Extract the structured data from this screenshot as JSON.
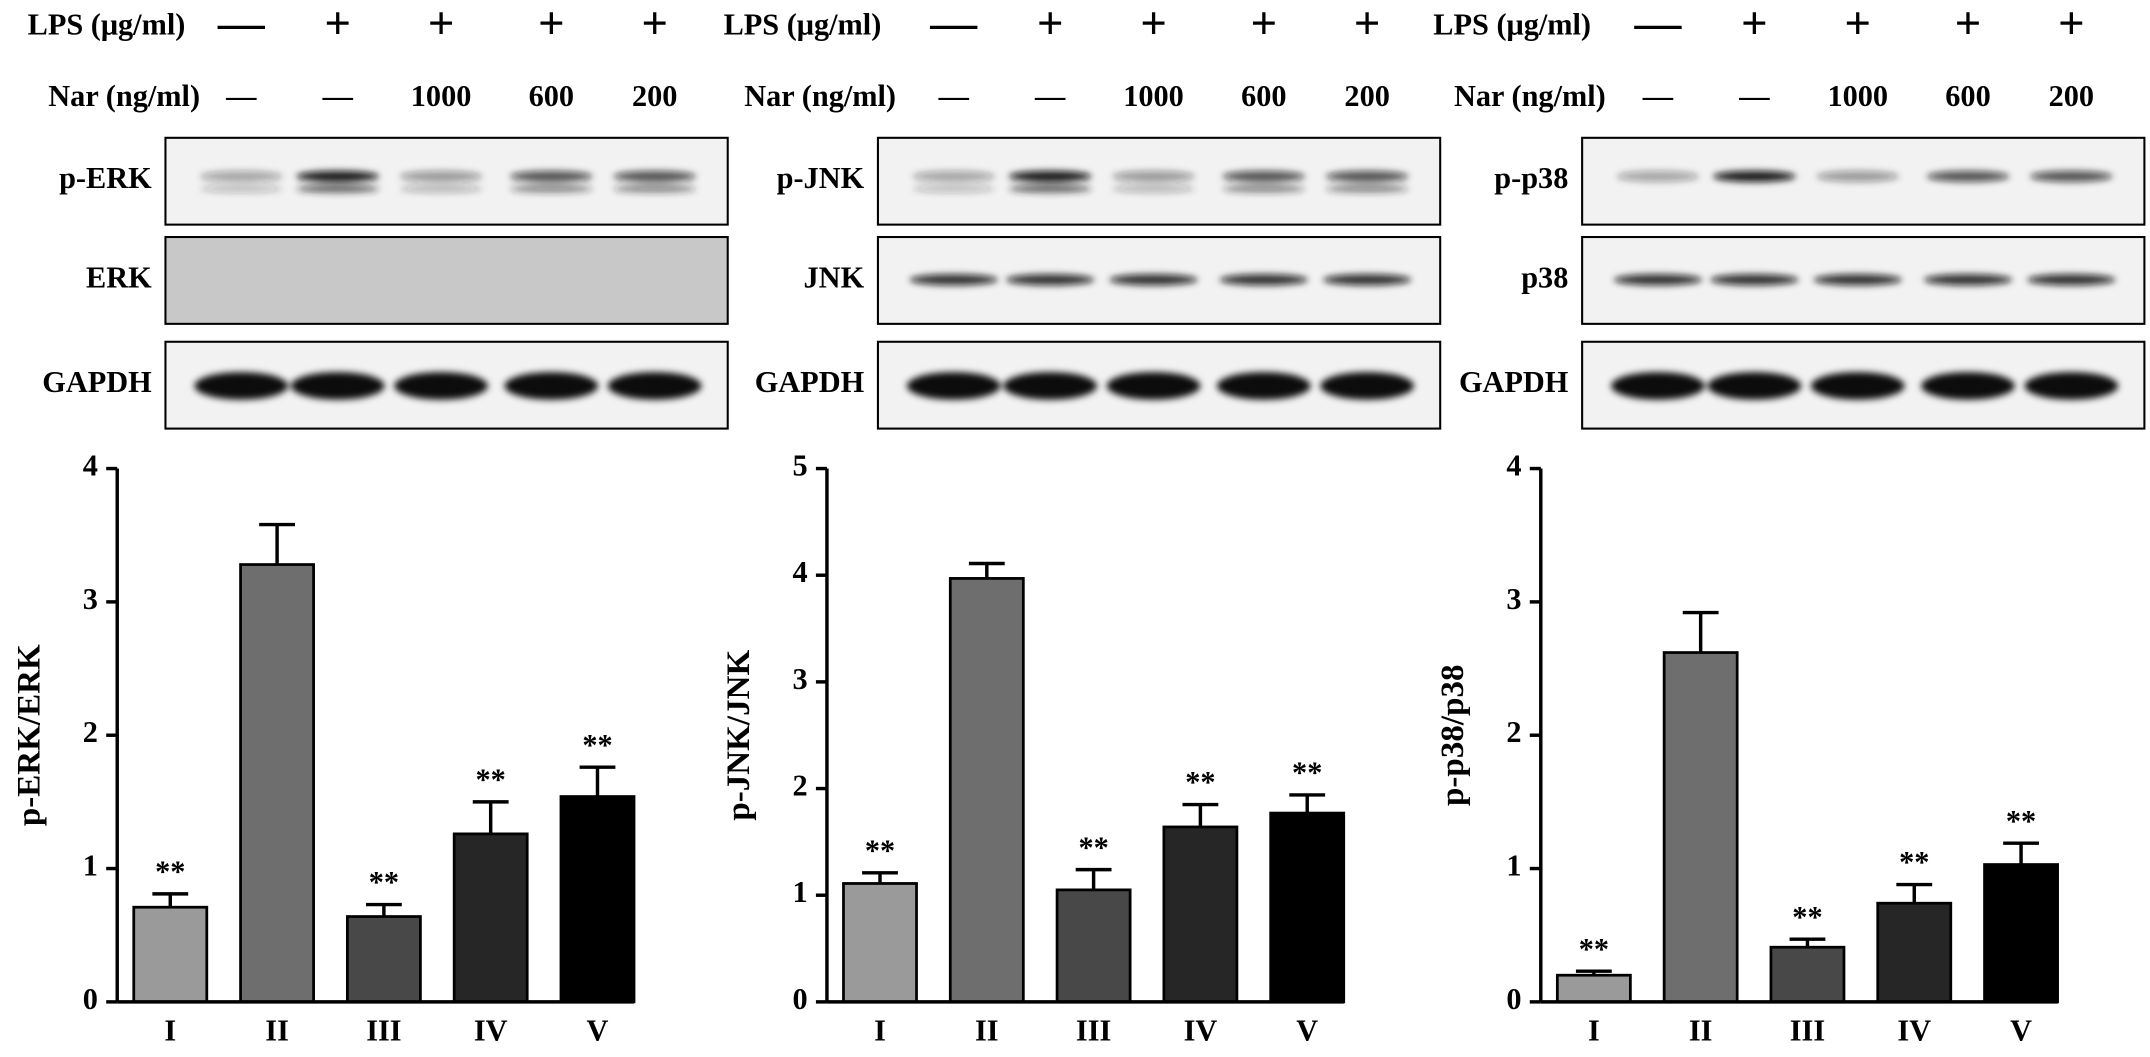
{
  "blots": [
    {
      "lps_label": "LPS (μg/ml)",
      "nar_label": "Nar (ng/ml)",
      "lps": [
        "—",
        "+",
        "+",
        "+",
        "+"
      ],
      "nar": [
        "—",
        "—",
        "1000",
        "600",
        "200"
      ],
      "bands": [
        "p-ERK",
        "ERK",
        "GAPDH"
      ]
    },
    {
      "lps_label": "LPS (μg/ml)",
      "nar_label": "Nar (ng/ml)",
      "lps": [
        "—",
        "+",
        "+",
        "+",
        "+"
      ],
      "nar": [
        "—",
        "—",
        "1000",
        "600",
        "200"
      ],
      "bands": [
        "p-JNK",
        "JNK",
        "GAPDH"
      ]
    },
    {
      "lps_label": "LPS (μg/ml)",
      "nar_label": "Nar (ng/ml)",
      "lps": [
        "—",
        "+",
        "+",
        "+",
        "+"
      ],
      "nar": [
        "—",
        "—",
        "1000",
        "600",
        "200"
      ],
      "bands": [
        "p-p38",
        "p38",
        "GAPDH"
      ]
    }
  ],
  "chart_data": [
    {
      "type": "bar",
      "y_label": "p-ERK/ERK",
      "categories": [
        "I",
        "II",
        "III",
        "IV",
        "V"
      ],
      "values": [
        0.71,
        3.28,
        0.64,
        1.26,
        1.54
      ],
      "errors": [
        0.1,
        0.3,
        0.09,
        0.24,
        0.22
      ],
      "colors": [
        "#9a9a9a",
        "#6e6e6e",
        "#484848",
        "#262626",
        "#000000"
      ],
      "annotations": [
        "**",
        null,
        "**",
        "**",
        "**"
      ],
      "ylim": [
        0,
        4
      ],
      "yticks": [
        0,
        1,
        2,
        3,
        4
      ]
    },
    {
      "type": "bar",
      "y_label": "p-JNK/JNK",
      "categories": [
        "I",
        "II",
        "III",
        "IV",
        "V"
      ],
      "values": [
        1.11,
        3.97,
        1.05,
        1.64,
        1.77
      ],
      "errors": [
        0.1,
        0.14,
        0.19,
        0.21,
        0.17
      ],
      "colors": [
        "#9a9a9a",
        "#6e6e6e",
        "#484848",
        "#262626",
        "#000000"
      ],
      "annotations": [
        "**",
        null,
        "**",
        "**",
        "**"
      ],
      "ylim": [
        0,
        5
      ],
      "yticks": [
        0,
        1,
        2,
        3,
        4,
        5
      ]
    },
    {
      "type": "bar",
      "y_label": "p-p38/p38",
      "categories": [
        "I",
        "II",
        "III",
        "IV",
        "V"
      ],
      "values": [
        0.2,
        2.62,
        0.41,
        0.74,
        1.03
      ],
      "errors": [
        0.03,
        0.3,
        0.06,
        0.14,
        0.16
      ],
      "colors": [
        "#9a9a9a",
        "#6e6e6e",
        "#484848",
        "#262626",
        "#000000"
      ],
      "annotations": [
        "**",
        null,
        "**",
        "**",
        "**"
      ],
      "ylim": [
        0,
        4
      ],
      "yticks": [
        0,
        1,
        2,
        3,
        4
      ]
    }
  ]
}
